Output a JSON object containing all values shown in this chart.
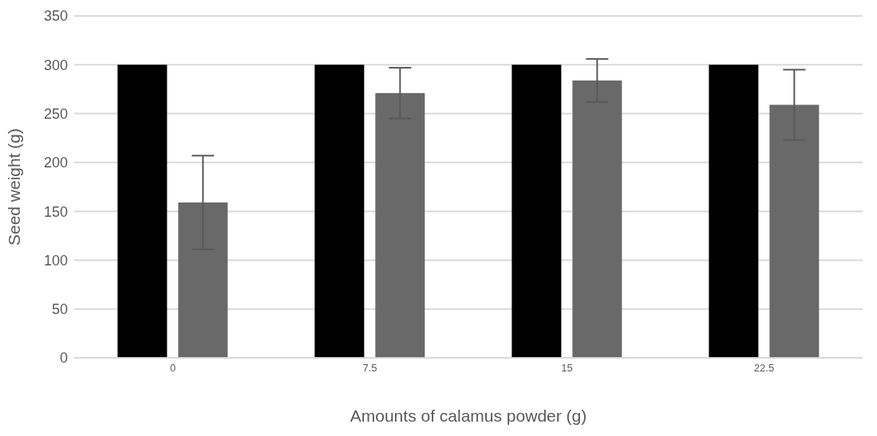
{
  "chart_data": {
    "type": "bar",
    "xlabel": "Amounts of calamus powder (g)",
    "ylabel": "Seed weight (g)",
    "categories": [
      "0",
      "7.5",
      "15",
      "22.5"
    ],
    "series": [
      {
        "color": "#000000",
        "values": [
          300,
          300,
          300,
          300
        ],
        "errors": [
          0,
          0,
          0,
          0
        ]
      },
      {
        "color": "#696969",
        "values": [
          159,
          271,
          284,
          259
        ],
        "errors": [
          48,
          26,
          22,
          36
        ]
      }
    ],
    "ylim": [
      0,
      350
    ],
    "yticks": [
      0,
      50,
      100,
      150,
      200,
      250,
      300,
      350
    ],
    "grid": "y",
    "legend": false
  }
}
